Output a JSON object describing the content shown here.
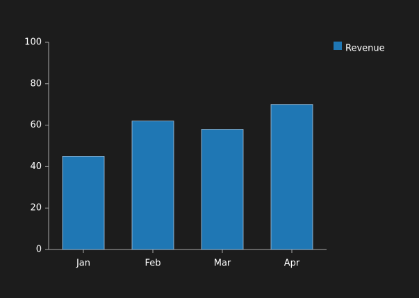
{
  "chart_data": {
    "type": "bar",
    "categories": [
      "Jan",
      "Feb",
      "Mar",
      "Apr"
    ],
    "series": [
      {
        "name": "Revenue",
        "color": "#1f77b4",
        "values": [
          45,
          62,
          58,
          70
        ]
      }
    ],
    "ylim": [
      0,
      100
    ],
    "yticks": [
      0,
      20,
      40,
      60,
      80,
      100
    ],
    "legend": "right"
  }
}
